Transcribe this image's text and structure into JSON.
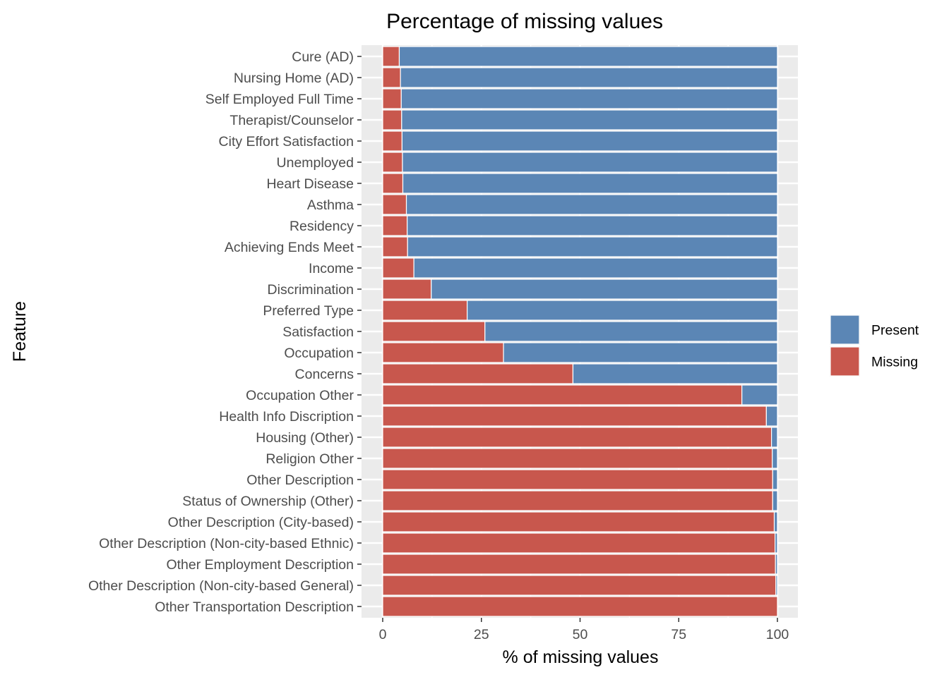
{
  "chart_data": {
    "type": "bar",
    "orientation": "horizontal",
    "stacked": true,
    "title": "Percentage of missing values",
    "xlabel": "% of missing values",
    "ylabel": "Feature",
    "xlim": [
      0,
      100
    ],
    "xticks": [
      0,
      25,
      50,
      75,
      100
    ],
    "grid": true,
    "legend_position": "right",
    "categories": [
      "Cure (AD)",
      "Nursing Home (AD)",
      "Self Employed Full Time",
      "Therapist/Counselor",
      "City Effort Satisfaction",
      "Unemployed",
      "Heart Disease",
      "Asthma",
      "Residency",
      "Achieving Ends Meet",
      "Income",
      "Discrimination",
      "Preferred Type",
      "Satisfaction",
      "Occupation",
      "Concerns",
      "Occupation Other",
      "Health Info Discription",
      "Housing (Other)",
      "Religion Other",
      "Other Description",
      "Status of Ownership (Other)",
      "Other Description (City-based)",
      "Other Description (Non-city-based Ethnic)",
      "Other Employment Description",
      "Other Description (Non-city-based General)",
      "Other Transportation Description"
    ],
    "series": [
      {
        "name": "Missing",
        "color": "#c8574d",
        "values": [
          4.2,
          4.5,
          4.7,
          4.8,
          4.9,
          5.0,
          5.1,
          6.0,
          6.2,
          6.3,
          7.9,
          12.3,
          21.4,
          25.9,
          30.6,
          48.2,
          91.0,
          97.2,
          98.5,
          98.7,
          98.8,
          98.8,
          99.2,
          99.4,
          99.5,
          99.6,
          100.0
        ]
      },
      {
        "name": "Present",
        "color": "#5b86b5",
        "values": [
          95.8,
          95.5,
          95.3,
          95.2,
          95.1,
          95.0,
          94.9,
          94.0,
          93.8,
          93.7,
          92.1,
          87.7,
          78.6,
          74.1,
          69.4,
          51.8,
          9.0,
          2.8,
          1.5,
          1.3,
          1.2,
          1.2,
          0.8,
          0.6,
          0.5,
          0.4,
          0.0
        ]
      }
    ],
    "legend": [
      {
        "label": "Present",
        "color": "#5b86b5"
      },
      {
        "label": "Missing",
        "color": "#c8574d"
      }
    ],
    "panel_background": "#ebebeb",
    "grid_color": "#ffffff"
  }
}
